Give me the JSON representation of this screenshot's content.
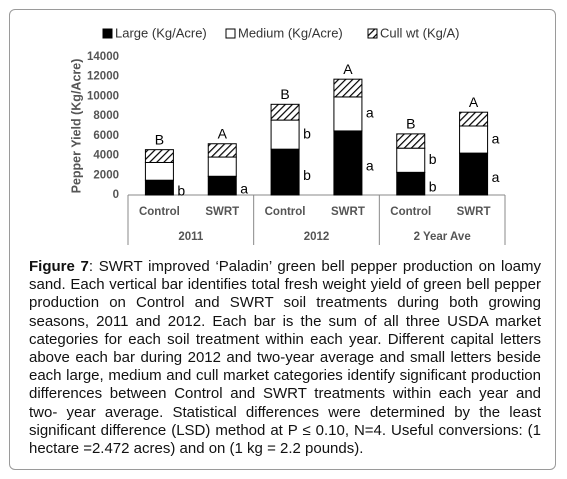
{
  "chart_data": {
    "type": "stacked-bar",
    "y_label": "Pepper Yield (Kg/Acre)",
    "categories": [
      "Control",
      "SWRT",
      "Control",
      "SWRT",
      "Control",
      "SWRT"
    ],
    "group_labels": [
      "2011",
      "2012",
      "2 Year Ave"
    ],
    "series": [
      {
        "name": "Large (Kg/Acre)",
        "color": "#000000",
        "values": [
          1500,
          1900,
          4650,
          6500,
          2300,
          4250
        ],
        "letters": [
          "b",
          "a",
          "b",
          "a",
          "b",
          "a"
        ]
      },
      {
        "name": "Medium (Kg/Acre)",
        "color": "#ffffff",
        "values": [
          1800,
          1950,
          2950,
          3450,
          2450,
          2750
        ],
        "letters": [
          null,
          null,
          "b",
          "a",
          "b",
          "a"
        ]
      },
      {
        "name": "Cull wt (Kg/A)",
        "color": "hatch",
        "values": [
          1300,
          1350,
          1600,
          1800,
          1450,
          1400
        ]
      }
    ],
    "total_letters": [
      "B",
      "A",
      "B",
      "A",
      "B",
      "A"
    ],
    "ylim": [
      0,
      14000
    ],
    "yticks": [
      0,
      2000,
      4000,
      6000,
      8000,
      10000,
      12000,
      14000
    ],
    "grid": false
  },
  "caption": {
    "label": "Figure 7",
    "text": ": SWRT improved ‘Paladin’ green bell pepper production on loamy sand. Each vertical bar identifies total fresh weight yield of green bell pepper production on Control and SWRT soil treatments during both growing seasons, 2011 and 2012. Each bar is the sum of all three USDA market categories for each soil treatment within each year. Different capital letters above each bar during 2012 and two-year average and small letters beside each large, medium and cull market categories identify significant production differences between Control and SWRT treatments within each year and two- year average.  Statistical differences were determined by the least significant difference (LSD) method at P ≤ 0.10, N=4. Useful conversions: (1 hectare =2.472 acres) and on (1 kg = 2.2 pounds)."
  }
}
